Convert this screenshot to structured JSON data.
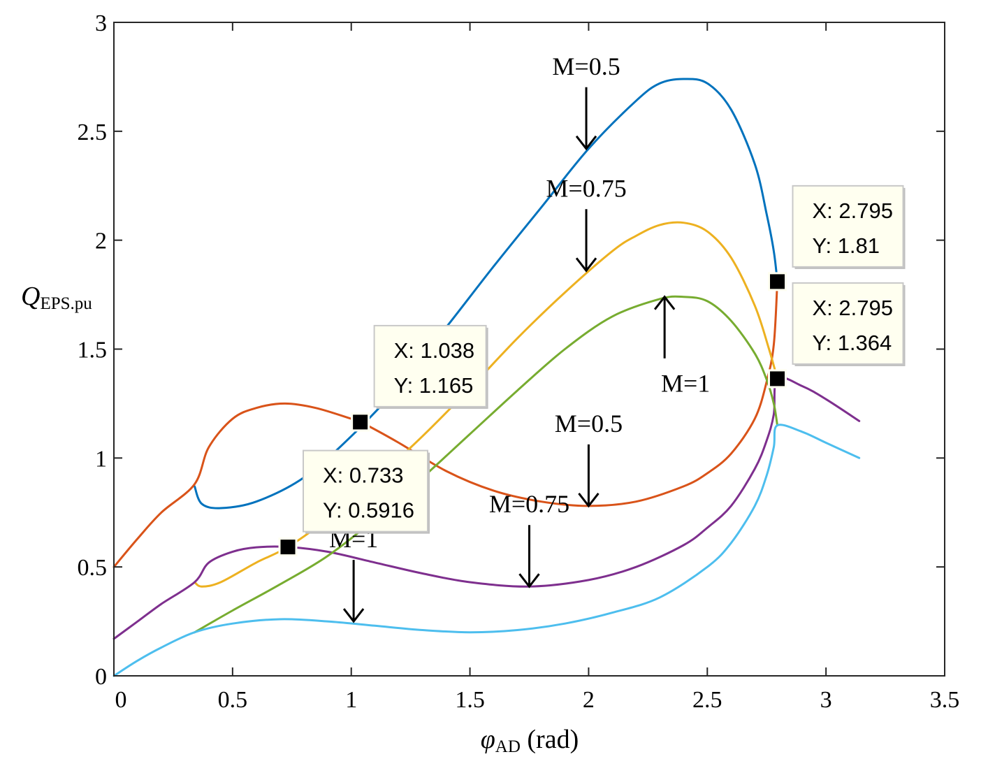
{
  "chart_data": {
    "type": "line",
    "title": "",
    "xlabel": "φAD (rad)",
    "xlabel_symbol": "φ",
    "xlabel_sub": "AD",
    "xlabel_unit": " (rad)",
    "ylabel": "QEPS.pu",
    "ylabel_symbol": "Q",
    "ylabel_sub": "EPS.pu",
    "xlim": [
      0,
      3.5
    ],
    "ylim": [
      0,
      3
    ],
    "xticks": [
      0,
      0.5,
      1,
      1.5,
      2,
      2.5,
      3,
      3.5
    ],
    "xtick_labels": [
      "0",
      "0.5",
      "1",
      "1.5",
      "2",
      "2.5",
      "3",
      "3.5"
    ],
    "yticks": [
      0,
      0.5,
      1,
      1.5,
      2,
      2.5,
      3
    ],
    "ytick_labels": [
      "0",
      "0.5",
      "1",
      "1.5",
      "2",
      "2.5",
      "3"
    ],
    "grid": false,
    "series": [
      {
        "name": "M=0.5 upper",
        "color": "#0072BD",
        "x": [
          0.34,
          0.37,
          0.45,
          0.6,
          0.8,
          1.0,
          1.2,
          1.4,
          1.6,
          1.8,
          2.0,
          2.2,
          2.3,
          2.4,
          2.5,
          2.6,
          2.7,
          2.75,
          2.78,
          2.795
        ],
        "y": [
          0.87,
          0.79,
          0.77,
          0.8,
          0.91,
          1.1,
          1.33,
          1.6,
          1.88,
          2.15,
          2.42,
          2.64,
          2.72,
          2.74,
          2.72,
          2.6,
          2.35,
          2.12,
          1.95,
          1.81
        ]
      },
      {
        "name": "M=0.5 lower",
        "color": "#D95319",
        "x": [
          0.0,
          0.1,
          0.2,
          0.34,
          0.4,
          0.5,
          0.6,
          0.72,
          0.85,
          1.0,
          1.04,
          1.2,
          1.4,
          1.6,
          1.8,
          2.0,
          2.2,
          2.4,
          2.5,
          2.6,
          2.7,
          2.75,
          2.78,
          2.795
        ],
        "y": [
          0.5,
          0.63,
          0.75,
          0.88,
          1.05,
          1.18,
          1.23,
          1.25,
          1.23,
          1.18,
          1.165,
          1.07,
          0.94,
          0.85,
          0.8,
          0.78,
          0.8,
          0.87,
          0.93,
          1.02,
          1.18,
          1.35,
          1.52,
          1.81
        ]
      },
      {
        "name": "M=0.75 upper",
        "color": "#EDB120",
        "x": [
          0.34,
          0.37,
          0.45,
          0.6,
          0.733,
          0.9,
          1.1,
          1.3,
          1.5,
          1.7,
          1.9,
          2.1,
          2.2,
          2.3,
          2.4,
          2.5,
          2.6,
          2.7,
          2.76,
          2.795
        ],
        "y": [
          0.43,
          0.41,
          0.43,
          0.52,
          0.5916,
          0.72,
          0.9,
          1.1,
          1.32,
          1.55,
          1.76,
          1.95,
          2.02,
          2.07,
          2.08,
          2.04,
          1.92,
          1.7,
          1.5,
          1.364
        ]
      },
      {
        "name": "M=0.75 lower",
        "color": "#7E2F8E",
        "x": [
          0.0,
          0.1,
          0.2,
          0.34,
          0.4,
          0.5,
          0.6,
          0.733,
          0.9,
          1.1,
          1.3,
          1.5,
          1.75,
          2.0,
          2.2,
          2.4,
          2.5,
          2.6,
          2.7,
          2.75,
          2.78,
          2.795,
          2.9,
          3.0,
          3.14
        ],
        "y": [
          0.17,
          0.25,
          0.33,
          0.43,
          0.52,
          0.57,
          0.59,
          0.5916,
          0.57,
          0.52,
          0.47,
          0.43,
          0.41,
          0.44,
          0.5,
          0.6,
          0.68,
          0.78,
          0.95,
          1.08,
          1.2,
          1.364,
          1.33,
          1.27,
          1.17
        ]
      },
      {
        "name": "M=1 upper",
        "color": "#77AC30",
        "x": [
          0.34,
          0.5,
          0.7,
          0.9,
          1.1,
          1.3,
          1.5,
          1.7,
          1.9,
          2.1,
          2.3,
          2.4,
          2.5,
          2.6,
          2.7,
          2.75,
          2.78,
          2.795
        ],
        "y": [
          0.2,
          0.3,
          0.42,
          0.55,
          0.72,
          0.91,
          1.11,
          1.31,
          1.5,
          1.65,
          1.73,
          1.74,
          1.72,
          1.63,
          1.48,
          1.36,
          1.25,
          1.15
        ]
      },
      {
        "name": "M=1 lower",
        "color": "#4DBEEE",
        "x": [
          0.0,
          0.1,
          0.2,
          0.34,
          0.5,
          0.7,
          0.9,
          1.1,
          1.3,
          1.5,
          1.7,
          1.9,
          2.1,
          2.3,
          2.5,
          2.6,
          2.7,
          2.75,
          2.78,
          2.795,
          2.9,
          3.0,
          3.14
        ],
        "y": [
          0.0,
          0.07,
          0.13,
          0.2,
          0.24,
          0.26,
          0.25,
          0.23,
          0.21,
          0.2,
          0.21,
          0.24,
          0.29,
          0.36,
          0.5,
          0.61,
          0.78,
          0.92,
          1.05,
          1.15,
          1.12,
          1.07,
          1.0
        ]
      }
    ],
    "arrow_labels": [
      {
        "text": "M=0.5",
        "x": 1.99,
        "y": 2.42,
        "direction": "down"
      },
      {
        "text": "M=0.75",
        "x": 1.99,
        "y": 1.86,
        "direction": "down"
      },
      {
        "text": "M=1",
        "x": 2.32,
        "y": 1.74,
        "direction": "up"
      },
      {
        "text": "M=0.5",
        "x": 2.0,
        "y": 0.78,
        "direction": "down"
      },
      {
        "text": "M=0.75",
        "x": 1.75,
        "y": 0.41,
        "direction": "down"
      },
      {
        "text": "M=1",
        "x": 1.01,
        "y": 0.25,
        "direction": "down"
      }
    ],
    "datatips": [
      {
        "x": 1.038,
        "y": 1.165,
        "x_label": "X: 1.038",
        "y_label": "Y: 1.165"
      },
      {
        "x": 0.733,
        "y": 0.5916,
        "x_label": "X: 0.733",
        "y_label": "Y: 0.5916"
      },
      {
        "x": 2.795,
        "y": 1.81,
        "x_label": "X: 2.795",
        "y_label": "Y: 1.81"
      },
      {
        "x": 2.795,
        "y": 1.364,
        "x_label": "X: 2.795",
        "y_label": "Y: 1.364"
      }
    ]
  }
}
